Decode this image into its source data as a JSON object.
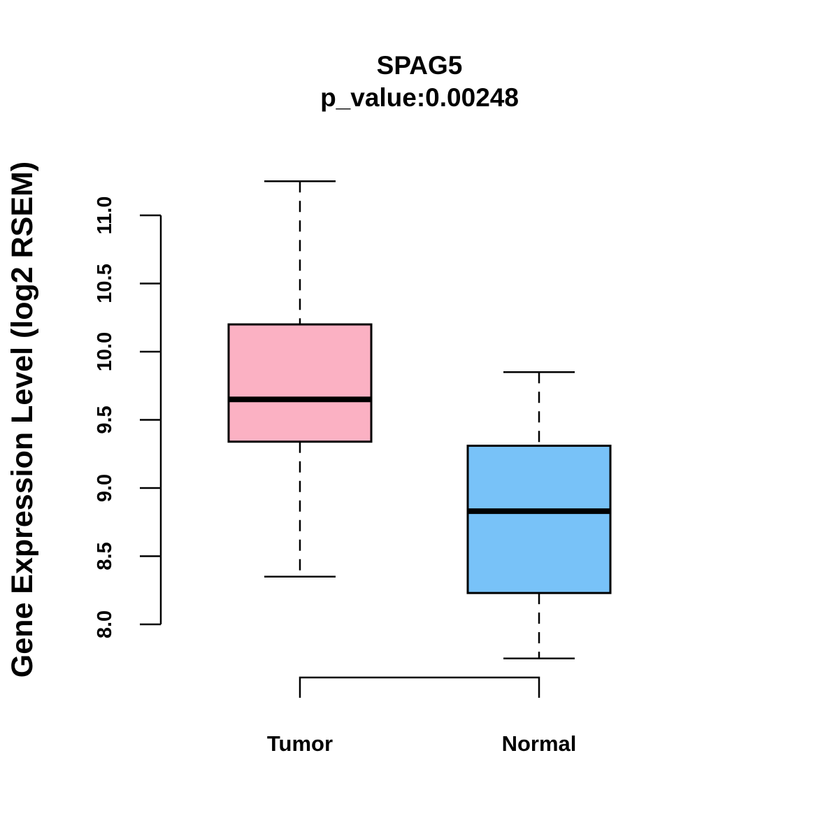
{
  "chart_data": {
    "type": "box",
    "title": "SPAG5",
    "subtitle": "p_value:0.00248",
    "xlabel": "",
    "ylabel": "Gene Expression Level (log2 RSEM)",
    "ylim": [
      8.0,
      11.0
    ],
    "yticks": [
      "8.0",
      "8.5",
      "9.0",
      "9.5",
      "10.0",
      "10.5",
      "11.0"
    ],
    "categories": [
      "Tumor",
      "Normal"
    ],
    "boxes": [
      {
        "name": "Tumor",
        "min": 8.35,
        "q1": 9.34,
        "median": 9.65,
        "q3": 10.2,
        "max": 11.25,
        "color": "#FBB1C3"
      },
      {
        "name": "Normal",
        "min": 7.75,
        "q1": 8.23,
        "median": 8.83,
        "q3": 9.31,
        "max": 9.85,
        "color": "#78C2F8"
      }
    ],
    "comparison_bracket": [
      "Tumor",
      "Normal"
    ]
  }
}
